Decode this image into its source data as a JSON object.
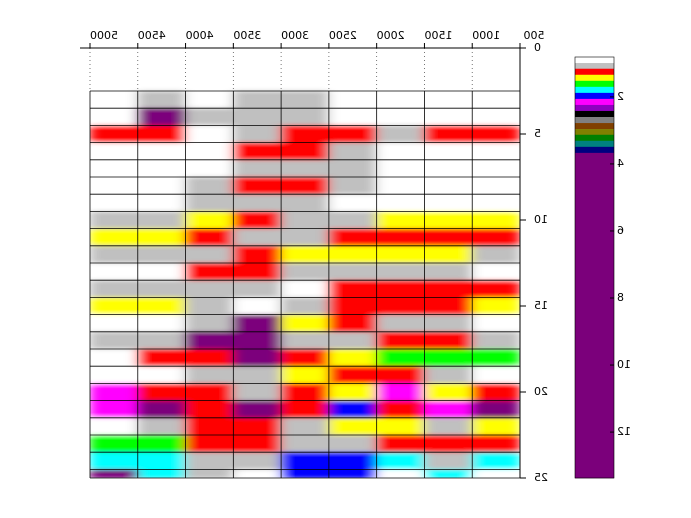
{
  "chart_data": {
    "type": "heatmap",
    "x_edges": [
      5000,
      4500,
      4000,
      3500,
      3000,
      2500,
      2000,
      1500,
      1000,
      500
    ],
    "y_edges": [
      2.5,
      3.5,
      4.5,
      5.5,
      6.5,
      7.5,
      8.5,
      9.5,
      10.5,
      11.5,
      12.5,
      13.5,
      14.5,
      15.5,
      16.5,
      17.5,
      18.5,
      19.5,
      20.5,
      21.5,
      22.5,
      23.5,
      24.5,
      25
    ],
    "values": [
      [
        0.9,
        1.05,
        0.9,
        1.05,
        1.05,
        0.9,
        0.9,
        0.9,
        0.9
      ],
      [
        0.9,
        5,
        1.05,
        1.05,
        1.05,
        0.9,
        0.9,
        0.9,
        0.9
      ],
      [
        1.25,
        1.25,
        0.9,
        1.05,
        1.25,
        1.25,
        1.05,
        1.25,
        1.25
      ],
      [
        0.9,
        0.9,
        0.9,
        1.25,
        1.25,
        1.05,
        0.9,
        0.9,
        0.9
      ],
      [
        0.9,
        0.9,
        0.9,
        1.05,
        1.05,
        1.05,
        0.9,
        0.9,
        0.9
      ],
      [
        0.9,
        0.9,
        1.05,
        1.25,
        1.25,
        1.05,
        0.9,
        0.9,
        0.9
      ],
      [
        0.9,
        0.9,
        1.05,
        1.05,
        1.05,
        0.9,
        0.9,
        0.9,
        0.9
      ],
      [
        1.05,
        1.05,
        1.43,
        1.25,
        1.05,
        1.05,
        1.43,
        1.43,
        1.43
      ],
      [
        1.43,
        1.43,
        1.25,
        1.05,
        1.05,
        1.25,
        1.25,
        1.25,
        1.25
      ],
      [
        1.05,
        1.05,
        1.05,
        1.25,
        1.43,
        1.43,
        1.43,
        1.43,
        1.05
      ],
      [
        0.9,
        0.9,
        1.25,
        1.25,
        1.05,
        1.05,
        1.05,
        1.05,
        0.9
      ],
      [
        1.05,
        1.05,
        1.05,
        1.05,
        0.9,
        1.25,
        1.25,
        1.25,
        1.25
      ],
      [
        1.43,
        1.43,
        1.05,
        0.9,
        1.05,
        1.25,
        1.25,
        1.25,
        1.43
      ],
      [
        0.9,
        0.9,
        1.05,
        5,
        1.43,
        1.25,
        1.05,
        1.05,
        0.9
      ],
      [
        1.05,
        1.05,
        5,
        5,
        1.05,
        1.05,
        1.25,
        1.25,
        1.05
      ],
      [
        0.9,
        1.25,
        1.25,
        5,
        1.25,
        1.43,
        1.6,
        1.6,
        1.6
      ],
      [
        0.9,
        0.9,
        1.05,
        1.05,
        1.43,
        1.25,
        1.25,
        1.05,
        0.9
      ],
      [
        2.15,
        1.25,
        1.25,
        1.05,
        1.25,
        1.43,
        2.15,
        1.43,
        1.25
      ],
      [
        2.15,
        5,
        1.25,
        5,
        1.25,
        1.95,
        1.25,
        2.15,
        5
      ],
      [
        0.9,
        1.05,
        1.25,
        1.25,
        1.05,
        1.43,
        1.43,
        1.05,
        1.43
      ],
      [
        1.6,
        1.6,
        1.25,
        1.25,
        1.05,
        1.05,
        1.25,
        1.25,
        1.25
      ],
      [
        1.8,
        1.8,
        1.05,
        1.05,
        1.95,
        1.95,
        1.8,
        1.05,
        1.8
      ],
      [
        5,
        1.8,
        1.05,
        0.9,
        1.95,
        1.95,
        0.9,
        1.8,
        0.9
      ]
    ],
    "xlim": [
      500,
      5000
    ],
    "xticks": [
      500,
      1000,
      1500,
      2000,
      2500,
      3000,
      3500,
      4000,
      4500,
      5000
    ],
    "ylim": [
      0,
      25
    ],
    "yticks": [
      0,
      5,
      10,
      15,
      20,
      25
    ],
    "mirrored": true,
    "colorbar": {
      "ylim": [
        0.81,
        13.37
      ],
      "yticks": [
        2,
        4,
        6,
        8,
        10,
        12
      ],
      "edges": [
        0.81,
        0.99,
        1.16,
        1.34,
        1.52,
        1.7,
        1.88,
        2.06,
        2.24,
        2.42,
        2.6,
        2.78,
        2.96,
        3.13,
        3.31,
        3.49,
        3.67,
        13.37
      ],
      "colors": [
        "#ffffff",
        "#c0c0c0",
        "#ff0000",
        "#ffff00",
        "#00ff00",
        "#00ffff",
        "#0000ff",
        "#ff00ff",
        "#9000c0",
        "#000000",
        "#808080",
        "#804000",
        "#808000",
        "#008000",
        "#008080",
        "#000080",
        "#7b007b"
      ]
    }
  }
}
